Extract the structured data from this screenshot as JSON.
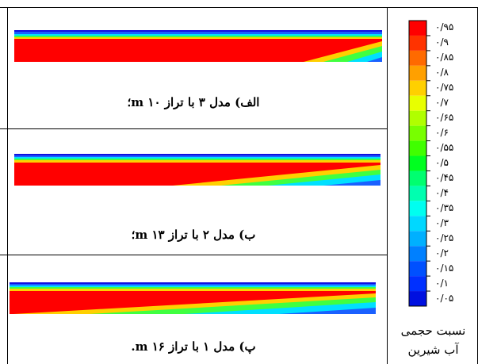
{
  "panels": [
    {
      "caption": "الف) مدل ۳ با تراز m ۱۰؛"
    },
    {
      "caption": "ب) مدل ۲ با تراز m ۱۳؛"
    },
    {
      "caption": "پ) مدل ۱ با تراز m ۱۶."
    }
  ],
  "legend": {
    "title_line1": "نسبت حجمی",
    "title_line2": "آب شیرین",
    "labels": [
      "۰/۹۵",
      "۰/۹",
      "۰/۸۵",
      "۰/۸",
      "۰/۷۵",
      "۰/۷",
      "۰/۶۵",
      "۰/۶",
      "۰/۵۵",
      "۰/۵",
      "۰/۴۵",
      "۰/۴",
      "۰/۳۵",
      "۰/۳",
      "۰/۲۵",
      "۰/۲",
      "۰/۱۵",
      "۰/۱",
      "۰/۰۵"
    ],
    "colors": [
      "#ff0000",
      "#ff3300",
      "#ff6a00",
      "#ffa000",
      "#ffd000",
      "#e8ff00",
      "#b0ff00",
      "#78ff00",
      "#40ff00",
      "#00ff20",
      "#00ff70",
      "#00ffb0",
      "#00fff0",
      "#00d8ff",
      "#00b0ff",
      "#0080ff",
      "#0050ff",
      "#0030ff",
      "#0010e0"
    ]
  }
}
